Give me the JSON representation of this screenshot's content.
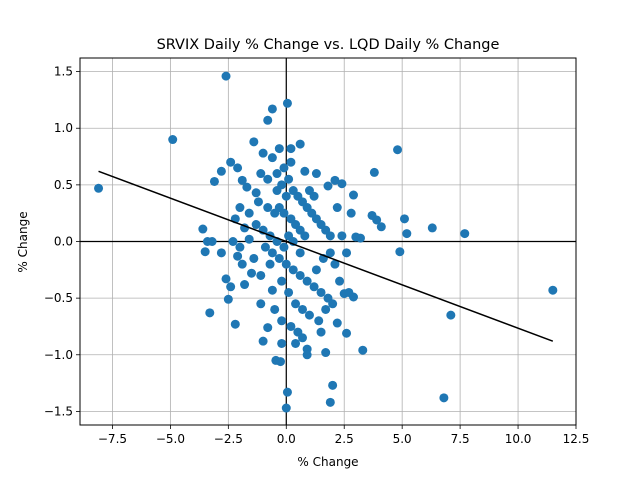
{
  "chart_data": {
    "type": "scatter",
    "title": "SRVIX Daily % Change vs. LQD Daily % Change",
    "xlabel": "% Change",
    "ylabel": "% Change",
    "xlim": [
      -8.9,
      12.5
    ],
    "ylim": [
      -1.62,
      1.62
    ],
    "xticks": [
      -7.5,
      -5.0,
      -2.5,
      0.0,
      2.5,
      5.0,
      7.5,
      10.0,
      12.5
    ],
    "xtick_labels": [
      "−7.5",
      "−5.0",
      "−2.5",
      "0.0",
      "2.5",
      "5.0",
      "7.5",
      "10.0",
      "12.5"
    ],
    "yticks": [
      -1.5,
      -1.0,
      -0.5,
      0.0,
      0.5,
      1.0,
      1.5
    ],
    "ytick_labels": [
      "−1.5",
      "−1.0",
      "−0.5",
      "0.0",
      "0.5",
      "1.0",
      "1.5"
    ],
    "grid": true,
    "reference_lines": {
      "x": 0,
      "y": 0
    },
    "colors": {
      "points": "#1f77b4",
      "fit_line": "#000000",
      "grid": "#b0b0b0",
      "axes": "#000000"
    },
    "points": [
      [
        -8.1,
        0.47
      ],
      [
        -4.9,
        0.9
      ],
      [
        -2.6,
        1.46
      ],
      [
        -0.6,
        1.17
      ],
      [
        0.05,
        1.22
      ],
      [
        -0.8,
        1.07
      ],
      [
        -1.4,
        0.88
      ],
      [
        0.2,
        0.82
      ],
      [
        0.6,
        0.86
      ],
      [
        4.8,
        0.81
      ],
      [
        -2.8,
        0.62
      ],
      [
        -3.1,
        0.53
      ],
      [
        -2.4,
        0.7
      ],
      [
        -2.1,
        0.65
      ],
      [
        3.8,
        0.61
      ],
      [
        -0.3,
        0.82
      ],
      [
        -1.0,
        0.78
      ],
      [
        -0.6,
        0.74
      ],
      [
        -3.6,
        0.11
      ],
      [
        -3.4,
        0.0
      ],
      [
        -3.2,
        0.0
      ],
      [
        -3.5,
        -0.09
      ],
      [
        -2.8,
        -0.1
      ],
      [
        -3.3,
        -0.63
      ],
      [
        -2.6,
        -0.33
      ],
      [
        -2.4,
        -0.4
      ],
      [
        -2.2,
        -0.73
      ],
      [
        -2.5,
        -0.51
      ],
      [
        -1.8,
        -0.38
      ],
      [
        -1.1,
        -0.55
      ],
      [
        -0.8,
        -0.76
      ],
      [
        -1.0,
        -0.88
      ],
      [
        -0.45,
        -1.05
      ],
      [
        -0.25,
        -1.06
      ],
      [
        0.05,
        -1.33
      ],
      [
        0.0,
        -1.47
      ],
      [
        0.9,
        -0.95
      ],
      [
        0.9,
        -1.0
      ],
      [
        1.7,
        -0.98
      ],
      [
        2.0,
        -1.27
      ],
      [
        1.9,
        -1.42
      ],
      [
        3.3,
        -0.96
      ],
      [
        2.6,
        -0.81
      ],
      [
        2.2,
        -0.72
      ],
      [
        2.9,
        -0.49
      ],
      [
        2.5,
        -0.46
      ],
      [
        2.7,
        -0.45
      ],
      [
        3.7,
        0.23
      ],
      [
        3.9,
        0.19
      ],
      [
        4.1,
        0.13
      ],
      [
        5.1,
        0.2
      ],
      [
        5.2,
        0.07
      ],
      [
        6.3,
        0.12
      ],
      [
        7.7,
        0.07
      ],
      [
        4.9,
        -0.09
      ],
      [
        11.5,
        -0.43
      ],
      [
        7.1,
        -0.65
      ],
      [
        6.8,
        -1.38
      ],
      [
        2.9,
        0.41
      ],
      [
        2.8,
        0.25
      ],
      [
        3.0,
        0.04
      ],
      [
        3.2,
        0.03
      ],
      [
        2.4,
        0.51
      ],
      [
        2.1,
        0.54
      ],
      [
        1.8,
        0.49
      ],
      [
        1.3,
        0.6
      ],
      [
        0.8,
        0.62
      ],
      [
        -1.3,
        0.43
      ],
      [
        -1.7,
        0.48
      ],
      [
        -1.9,
        0.54
      ],
      [
        -2.0,
        0.3
      ],
      [
        -2.2,
        0.2
      ],
      [
        -1.6,
        0.02
      ],
      [
        -1.9,
        -0.2
      ],
      [
        -2.1,
        -0.13
      ],
      [
        -1.5,
        -0.28
      ],
      [
        -0.6,
        -0.43
      ],
      [
        -1.2,
        0.35
      ],
      [
        -0.8,
        0.3
      ],
      [
        -0.5,
        0.25
      ],
      [
        -1.0,
        0.1
      ],
      [
        -0.7,
        0.05
      ],
      [
        -1.3,
        0.15
      ],
      [
        -0.4,
        0.45
      ],
      [
        -0.2,
        0.5
      ],
      [
        0.1,
        0.55
      ],
      [
        0.3,
        0.45
      ],
      [
        0.5,
        0.4
      ],
      [
        0.7,
        0.35
      ],
      [
        0.9,
        0.3
      ],
      [
        1.1,
        0.25
      ],
      [
        1.3,
        0.2
      ],
      [
        1.5,
        0.15
      ],
      [
        1.7,
        0.1
      ],
      [
        1.9,
        0.05
      ],
      [
        -0.3,
        0.3
      ],
      [
        -0.1,
        0.25
      ],
      [
        0.2,
        0.2
      ],
      [
        0.4,
        0.15
      ],
      [
        0.6,
        0.1
      ],
      [
        0.8,
        0.05
      ],
      [
        -0.9,
        -0.05
      ],
      [
        -0.6,
        -0.1
      ],
      [
        -0.3,
        -0.15
      ],
      [
        0.0,
        -0.2
      ],
      [
        0.3,
        -0.25
      ],
      [
        0.6,
        -0.3
      ],
      [
        0.9,
        -0.35
      ],
      [
        1.2,
        -0.4
      ],
      [
        1.5,
        -0.45
      ],
      [
        1.8,
        -0.5
      ],
      [
        -0.2,
        -0.35
      ],
      [
        0.1,
        -0.45
      ],
      [
        0.4,
        -0.55
      ],
      [
        0.7,
        -0.6
      ],
      [
        1.0,
        -0.65
      ],
      [
        -0.5,
        -0.6
      ],
      [
        -0.2,
        -0.7
      ],
      [
        0.2,
        -0.75
      ],
      [
        0.5,
        -0.8
      ],
      [
        1.4,
        -0.7
      ],
      [
        1.7,
        -0.6
      ],
      [
        2.0,
        -0.55
      ],
      [
        2.3,
        -0.35
      ],
      [
        2.1,
        -0.2
      ],
      [
        1.9,
        -0.1
      ],
      [
        1.6,
        -0.15
      ],
      [
        1.3,
        -0.25
      ],
      [
        -1.1,
        -0.3
      ],
      [
        -1.4,
        -0.15
      ],
      [
        -1.6,
        0.25
      ],
      [
        -0.1,
        0.65
      ],
      [
        0.2,
        0.7
      ],
      [
        -0.4,
        0.6
      ],
      [
        0.0,
        0.4
      ],
      [
        0.1,
        0.05
      ],
      [
        -0.1,
        -0.05
      ],
      [
        0.3,
        0.0
      ],
      [
        -0.4,
        0.0
      ],
      [
        0.6,
        -0.1
      ],
      [
        -0.7,
        -0.2
      ],
      [
        1.0,
        0.45
      ],
      [
        1.2,
        0.4
      ],
      [
        -2.3,
        0.0
      ],
      [
        -2.0,
        -0.05
      ],
      [
        -1.8,
        0.12
      ],
      [
        2.4,
        0.05
      ],
      [
        2.6,
        -0.1
      ],
      [
        2.2,
        0.3
      ],
      [
        -0.8,
        0.55
      ],
      [
        -1.1,
        0.6
      ],
      [
        0.4,
        -0.9
      ],
      [
        0.7,
        -0.85
      ],
      [
        -0.2,
        -0.9
      ],
      [
        1.5,
        -0.8
      ]
    ],
    "fit_line": {
      "x": [
        -8.1,
        11.5
      ],
      "y": [
        0.62,
        -0.88
      ]
    }
  }
}
